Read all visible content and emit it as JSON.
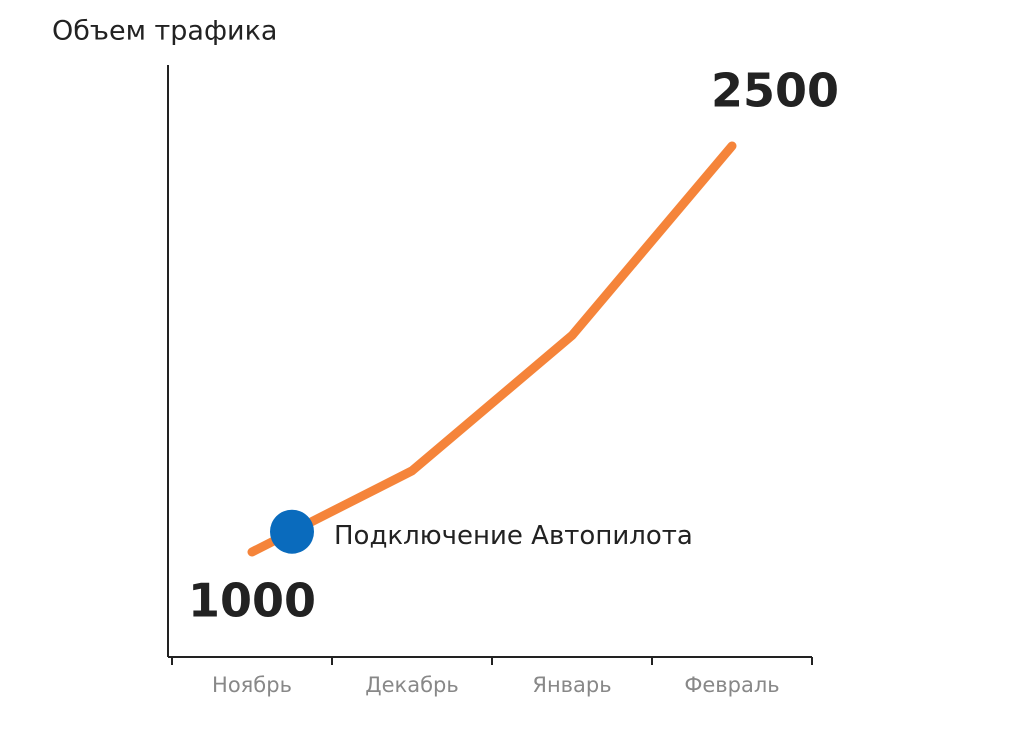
{
  "chart_data": {
    "type": "line",
    "y_axis_label": "Объем трафика",
    "categories": [
      "Ноябрь",
      "Декабрь",
      "Январь",
      "Февраль"
    ],
    "values": [
      1000,
      1300,
      1800,
      2500
    ],
    "color": "#f5843a",
    "annotation": "Подключение Автопилота",
    "annotation_color": "#0a6bbd"
  }
}
